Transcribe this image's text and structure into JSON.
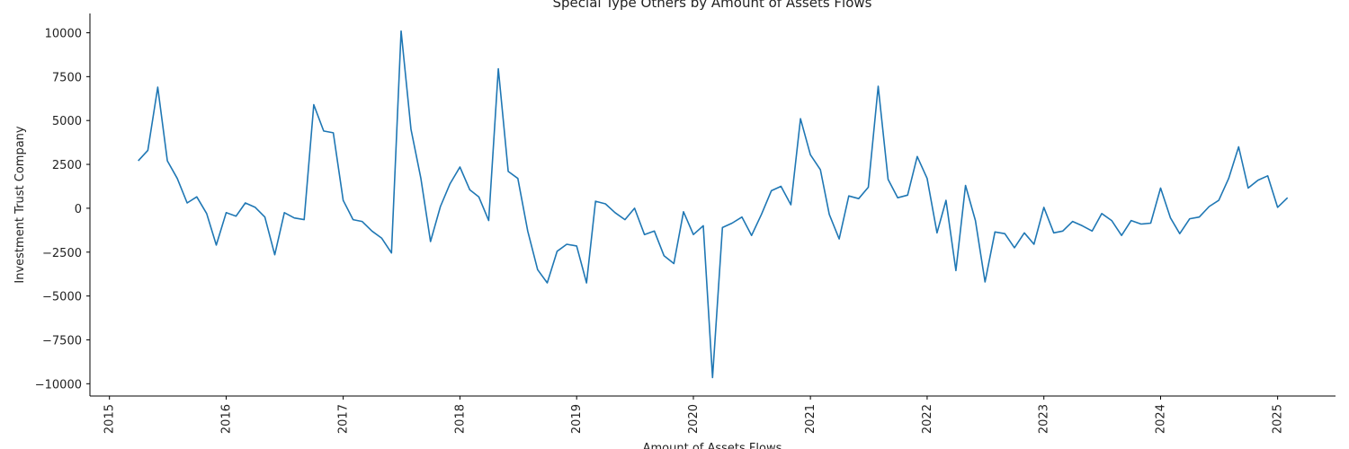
{
  "chart_data": {
    "type": "line",
    "title": "Special Type Others by Amount of Assets Flows",
    "xlabel": "Amount of Assets Flows",
    "ylabel": "Investment Trust Company",
    "xlim": [
      "2014-11-01",
      "2025-07-01"
    ],
    "ylim": [
      -10700,
      11100
    ],
    "x_ticks": [
      "2015",
      "2016",
      "2017",
      "2018",
      "2019",
      "2020",
      "2021",
      "2022",
      "2023",
      "2024",
      "2025"
    ],
    "y_ticks": [
      10000,
      7500,
      5000,
      2500,
      0,
      -2500,
      -5000,
      -7500,
      -10000
    ],
    "grid": false,
    "series": [
      {
        "color": "#1f77b4",
        "x": [
          "2015-04-01",
          "2015-05-01",
          "2015-06-01",
          "2015-07-01",
          "2015-08-01",
          "2015-09-01",
          "2015-10-01",
          "2015-11-01",
          "2015-12-01",
          "2016-01-01",
          "2016-02-01",
          "2016-03-01",
          "2016-04-01",
          "2016-05-01",
          "2016-06-01",
          "2016-07-01",
          "2016-08-01",
          "2016-09-01",
          "2016-10-01",
          "2016-11-01",
          "2016-12-01",
          "2017-01-01",
          "2017-02-01",
          "2017-03-01",
          "2017-04-01",
          "2017-05-01",
          "2017-06-01",
          "2017-07-01",
          "2017-08-01",
          "2017-09-01",
          "2017-10-01",
          "2017-11-01",
          "2017-12-01",
          "2018-01-01",
          "2018-02-01",
          "2018-03-01",
          "2018-04-01",
          "2018-05-01",
          "2018-06-01",
          "2018-07-01",
          "2018-08-01",
          "2018-09-01",
          "2018-10-01",
          "2018-11-01",
          "2018-12-01",
          "2019-01-01",
          "2019-02-01",
          "2019-03-01",
          "2019-04-01",
          "2019-05-01",
          "2019-06-01",
          "2019-07-01",
          "2019-08-01",
          "2019-09-01",
          "2019-10-01",
          "2019-11-01",
          "2019-12-01",
          "2020-01-01",
          "2020-02-01",
          "2020-03-01",
          "2020-04-01",
          "2020-05-01",
          "2020-06-01",
          "2020-07-01",
          "2020-08-01",
          "2020-09-01",
          "2020-10-01",
          "2020-11-01",
          "2020-12-01",
          "2021-01-01",
          "2021-02-01",
          "2021-03-01",
          "2021-04-01",
          "2021-05-01",
          "2021-06-01",
          "2021-07-01",
          "2021-08-01",
          "2021-09-01",
          "2021-10-01",
          "2021-11-01",
          "2021-12-01",
          "2022-01-01",
          "2022-02-01",
          "2022-03-01",
          "2022-04-01",
          "2022-05-01",
          "2022-06-01",
          "2022-07-01",
          "2022-08-01",
          "2022-09-01",
          "2022-10-01",
          "2022-11-01",
          "2022-12-01",
          "2023-01-01",
          "2023-02-01",
          "2023-03-01",
          "2023-04-01",
          "2023-05-01",
          "2023-06-01",
          "2023-07-01",
          "2023-08-01",
          "2023-09-01",
          "2023-10-01",
          "2023-11-01",
          "2023-12-01",
          "2024-01-01",
          "2024-02-01",
          "2024-03-01",
          "2024-04-01",
          "2024-05-01",
          "2024-06-01",
          "2024-07-01",
          "2024-08-01",
          "2024-09-01",
          "2024-10-01",
          "2024-11-01",
          "2024-12-01",
          "2025-01-01",
          "2025-02-01"
        ],
        "values": [
          2700,
          3300,
          6900,
          2700,
          1700,
          300,
          650,
          -300,
          -2100,
          -250,
          -450,
          300,
          50,
          -500,
          -2650,
          -250,
          -550,
          -650,
          5900,
          4400,
          4300,
          450,
          -650,
          -750,
          -1300,
          -1700,
          -2550,
          10100,
          4500,
          1700,
          -1900,
          100,
          1400,
          2350,
          1050,
          650,
          -700,
          7950,
          2100,
          1700,
          -1300,
          -3500,
          -4250,
          -2450,
          -2050,
          -2150,
          -4250,
          400,
          250,
          -250,
          -650,
          0,
          -1500,
          -1300,
          -2700,
          -3150,
          -200,
          -1500,
          -1000,
          -9650,
          -1100,
          -850,
          -500,
          -1550,
          -350,
          1000,
          1250,
          200,
          5100,
          3050,
          2200,
          -350,
          -1750,
          700,
          550,
          1200,
          6950,
          1650,
          600,
          750,
          2950,
          1700,
          -1400,
          450,
          -3550,
          1300,
          -700,
          -4200,
          -1350,
          -1450,
          -2250,
          -1400,
          -2050,
          50,
          -1400,
          -1300,
          -750,
          -1000,
          -1300,
          -300,
          -700,
          -1550,
          -700,
          -900,
          -850,
          1150,
          -550,
          -1450,
          -600,
          -500,
          100,
          450,
          1700,
          3500,
          1150,
          1600,
          1850,
          50,
          600
        ]
      }
    ]
  }
}
